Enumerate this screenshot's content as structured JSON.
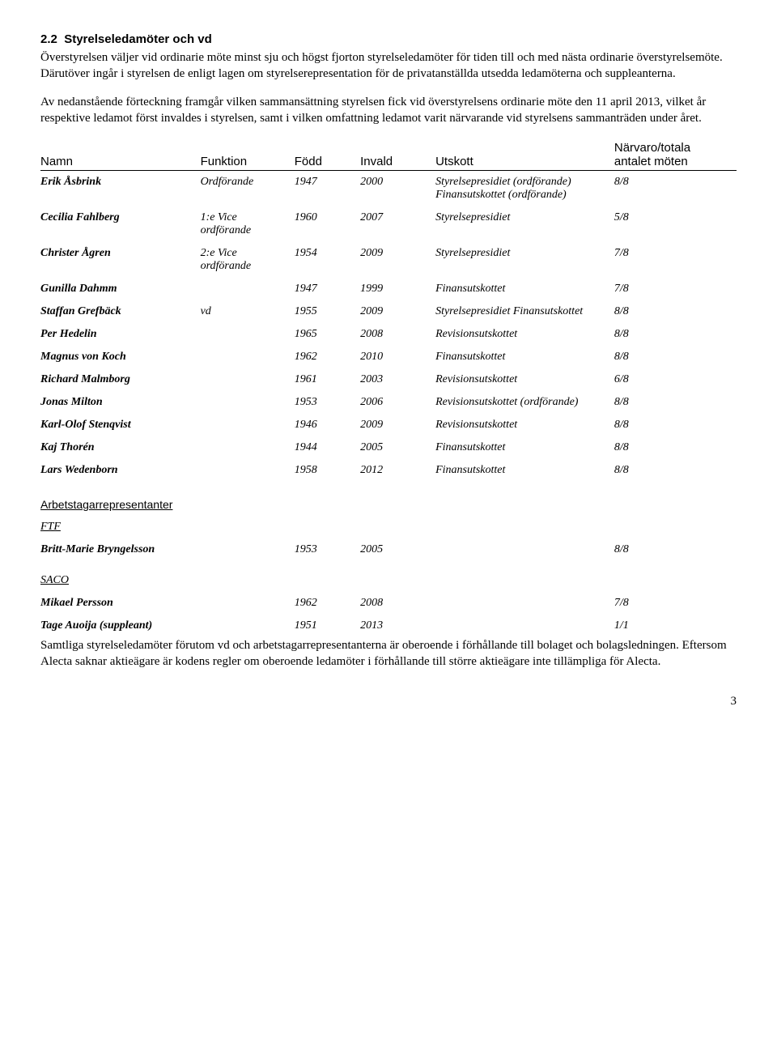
{
  "section_number": "2.2",
  "section_title": "Styrelseledamöter och vd",
  "para1": "Överstyrelsen väljer vid ordinarie möte minst sju och högst fjorton styrelseledamöter för tiden till och med nästa ordinarie överstyrelsemöte. Därutöver ingår i styrelsen de enligt lagen om styrelserepresentation för de privatanställda utsedda ledamöterna och suppleanterna.",
  "para2": "Av nedanstående förteckning framgår vilken sammansättning styrelsen fick vid överstyrelsens ordinarie möte den 11 april 2013, vilket år respektive ledamot först invaldes i styrelsen, samt i vilken omfattning ledamot varit närvarande vid styrelsens sammanträden under året.",
  "headers": {
    "name": "Namn",
    "func": "Funktion",
    "born": "Född",
    "elected": "Invald",
    "committee": "Utskott",
    "attend_l1": "Närvaro/totala",
    "attend_l2": "antalet möten"
  },
  "rows": [
    {
      "name": "Erik Åsbrink",
      "func": "Ordförande",
      "born": "1947",
      "elected": "2000",
      "committee": "Styrelsepresidiet (ordförande) Finansutskottet (ordförande)",
      "attend": "8/8"
    },
    {
      "name": "Cecilia Fahlberg",
      "func": "1:e Vice ordförande",
      "born": "1960",
      "elected": "2007",
      "committee": "Styrelsepresidiet",
      "attend": "5/8"
    },
    {
      "name": "Christer Ågren",
      "func": "2:e Vice ordförande",
      "born": "1954",
      "elected": "2009",
      "committee": "Styrelsepresidiet",
      "attend": "7/8"
    },
    {
      "name": "Gunilla Dahmm",
      "func": "",
      "born": "1947",
      "elected": "1999",
      "committee": "Finansutskottet",
      "attend": "7/8"
    },
    {
      "name": "Staffan Grefbäck",
      "func": "vd",
      "born": "1955",
      "elected": "2009",
      "committee": "Styrelsepresidiet Finansutskottet",
      "attend": "8/8"
    },
    {
      "name": "Per Hedelin",
      "func": "",
      "born": "1965",
      "elected": "2008",
      "committee": "Revisionsutskottet",
      "attend": "8/8"
    },
    {
      "name": "Magnus von Koch",
      "func": "",
      "born": "1962",
      "elected": "2010",
      "committee": "Finansutskottet",
      "attend": "8/8"
    },
    {
      "name": "Richard Malmborg",
      "func": "",
      "born": "1961",
      "elected": "2003",
      "committee": "Revisionsutskottet",
      "attend": "6/8"
    },
    {
      "name": "Jonas Milton",
      "func": "",
      "born": "1953",
      "elected": "2006",
      "committee": "Revisionsutskottet (ordförande)",
      "attend": "8/8"
    },
    {
      "name": "Karl-Olof Stenqvist",
      "func": "",
      "born": "1946",
      "elected": "2009",
      "committee": "Revisionsutskottet",
      "attend": "8/8"
    },
    {
      "name": "Kaj Thorén",
      "func": "",
      "born": "1944",
      "elected": "2005",
      "committee": "Finansutskottet",
      "attend": "8/8"
    },
    {
      "name": "Lars Wedenborn",
      "func": "",
      "born": "1958",
      "elected": "2012",
      "committee": "Finansutskottet",
      "attend": "8/8"
    }
  ],
  "rep_section": "Arbetstagarrepresentanter",
  "ftf_label": "FTF",
  "ftf_rows": [
    {
      "name": "Britt-Marie Bryngelsson",
      "func": "",
      "born": "1953",
      "elected": "2005",
      "committee": "",
      "attend": "8/8"
    }
  ],
  "saco_label": "SACO",
  "saco_rows": [
    {
      "name": "Mikael Persson",
      "func": "",
      "born": "1962",
      "elected": "2008",
      "committee": "",
      "attend": "7/8"
    },
    {
      "name": "Tage Auoija (suppleant)",
      "func": "",
      "born": "1951",
      "elected": "2013",
      "committee": "",
      "attend": "1/1"
    }
  ],
  "footer_para": "Samtliga styrelseledamöter förutom vd och arbetstagarrepresentanterna är oberoende i förhållande till bolaget och bolagsledningen. Eftersom Alecta saknar aktieägare är kodens regler om oberoende ledamöter i förhållande till större aktieägare inte tillämpliga för Alecta.",
  "page_number": "3"
}
